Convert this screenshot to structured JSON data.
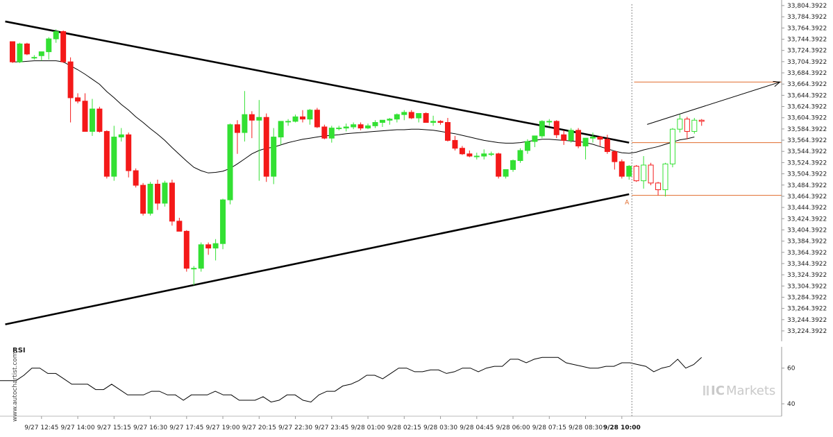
{
  "chart_data": {
    "type": "candlestick",
    "price_axis": {
      "min": 33224.3922,
      "max": 33804.3922,
      "step": 20,
      "tick_labels": [
        "33,804.3922",
        "33,784.3922",
        "33,764.3922",
        "33,744.3922",
        "33,724.3922",
        "33,704.3922",
        "33,684.3922",
        "33,664.3922",
        "33,644.3922",
        "33,624.3922",
        "33,604.3922",
        "33,584.3922",
        "33,564.3922",
        "33,544.3922",
        "33,524.3922",
        "33,504.3922",
        "33,484.3922",
        "33,464.3922",
        "33,444.3922",
        "33,424.3922",
        "33,404.3922",
        "33,384.3922",
        "33,364.3922",
        "33,344.3922",
        "33,324.3922",
        "33,304.3922",
        "33,284.3922",
        "33,264.3922",
        "33,244.3922",
        "33,224.3922"
      ]
    },
    "time_axis": {
      "labels": [
        "9/27 12:45",
        "9/27 14:00",
        "9/27 15:15",
        "9/27 16:30",
        "9/27 17:45",
        "9/27 19:00",
        "9/27 20:15",
        "9/27 22:30",
        "9/27 23:45",
        "9/28 01:00",
        "9/28 02:15",
        "9/28 03:30",
        "9/28 04:45",
        "9/28 06:00",
        "9/28 07:15",
        "9/28 08:30",
        "9/28 10:00"
      ],
      "label_index": [
        4,
        9,
        14,
        19,
        24,
        29,
        34,
        39,
        44,
        49,
        54,
        59,
        64,
        69,
        74,
        79,
        84
      ],
      "highlight": "9/28 10:00",
      "current_index": 85
    },
    "candles": [
      [
        33740,
        33738,
        33702,
        33704
      ],
      [
        33704,
        33738,
        33702,
        33736
      ],
      [
        33736,
        33738,
        33716,
        33718
      ],
      [
        33712,
        33716,
        33708,
        33712
      ],
      [
        33715,
        33722,
        33706,
        33722
      ],
      [
        33722,
        33748,
        33708,
        33745
      ],
      [
        33745,
        33762,
        33738,
        33758
      ],
      [
        33758,
        33760,
        33702,
        33704
      ],
      [
        33704,
        33712,
        33596,
        33640
      ],
      [
        33640,
        33648,
        33630,
        33634
      ],
      [
        33634,
        33648,
        33580,
        33580
      ],
      [
        33580,
        33638,
        33572,
        33620
      ],
      [
        33620,
        33624,
        33578,
        33580
      ],
      [
        33580,
        33582,
        33496,
        33500
      ],
      [
        33500,
        33590,
        33492,
        33570
      ],
      [
        33570,
        33586,
        33562,
        33574
      ],
      [
        33574,
        33578,
        33498,
        33510
      ],
      [
        33510,
        33514,
        33480,
        33484
      ],
      [
        33484,
        33488,
        33430,
        33434
      ],
      [
        33434,
        33490,
        33430,
        33486
      ],
      [
        33486,
        33494,
        33440,
        33452
      ],
      [
        33452,
        33492,
        33446,
        33488
      ],
      [
        33488,
        33494,
        33412,
        33420
      ],
      [
        33420,
        33426,
        33402,
        33402
      ],
      [
        33402,
        33404,
        33330,
        33336
      ],
      [
        33336,
        33340,
        33306,
        33336
      ],
      [
        33336,
        33382,
        33330,
        33378
      ],
      [
        33378,
        33382,
        33360,
        33372
      ],
      [
        33372,
        33388,
        33350,
        33380
      ],
      [
        33380,
        33460,
        33370,
        33458
      ],
      [
        33458,
        33594,
        33450,
        33592
      ],
      [
        33592,
        33600,
        33540,
        33578
      ],
      [
        33578,
        33652,
        33562,
        33610
      ],
      [
        33610,
        33616,
        33568,
        33600
      ],
      [
        33600,
        33636,
        33492,
        33605
      ],
      [
        33605,
        33612,
        33490,
        33500
      ],
      [
        33500,
        33586,
        33486,
        33570
      ],
      [
        33570,
        33598,
        33556,
        33598
      ],
      [
        33598,
        33602,
        33590,
        33598
      ],
      [
        33598,
        33610,
        33596,
        33606
      ],
      [
        33606,
        33618,
        33596,
        33602
      ],
      [
        33602,
        33620,
        33592,
        33618
      ],
      [
        33618,
        33622,
        33586,
        33588
      ],
      [
        33588,
        33592,
        33566,
        33568
      ],
      [
        33568,
        33590,
        33560,
        33586
      ],
      [
        33586,
        33590,
        33582,
        33586
      ],
      [
        33586,
        33594,
        33580,
        33588
      ],
      [
        33588,
        33596,
        33584,
        33592
      ],
      [
        33592,
        33596,
        33582,
        33586
      ],
      [
        33586,
        33594,
        33584,
        33590
      ],
      [
        33590,
        33600,
        33586,
        33596
      ],
      [
        33596,
        33600,
        33588,
        33600
      ],
      [
        33600,
        33604,
        33592,
        33602
      ],
      [
        33602,
        33612,
        33596,
        33610
      ],
      [
        33610,
        33618,
        33600,
        33614
      ],
      [
        33614,
        33618,
        33602,
        33604
      ],
      [
        33604,
        33612,
        33596,
        33612
      ],
      [
        33612,
        33614,
        33596,
        33596
      ],
      [
        33596,
        33608,
        33590,
        33598
      ],
      [
        33598,
        33600,
        33592,
        33596
      ],
      [
        33596,
        33604,
        33562,
        33564
      ],
      [
        33564,
        33572,
        33546,
        33550
      ],
      [
        33550,
        33554,
        33538,
        33540
      ],
      [
        33540,
        33546,
        33534,
        33536
      ],
      [
        33536,
        33542,
        33530,
        33536
      ],
      [
        33536,
        33548,
        33530,
        33540
      ],
      [
        33540,
        33544,
        33536,
        33540
      ],
      [
        33540,
        33542,
        33496,
        33500
      ],
      [
        33500,
        33512,
        33496,
        33512
      ],
      [
        33512,
        33530,
        33508,
        33528
      ],
      [
        33528,
        33550,
        33524,
        33546
      ],
      [
        33546,
        33566,
        33540,
        33562
      ],
      [
        33562,
        33572,
        33552,
        33572
      ],
      [
        33572,
        33600,
        33568,
        33598
      ],
      [
        33598,
        33602,
        33590,
        33598
      ],
      [
        33598,
        33600,
        33568,
        33574
      ],
      [
        33574,
        33582,
        33556,
        33564
      ],
      [
        33564,
        33586,
        33560,
        33582
      ],
      [
        33582,
        33586,
        33550,
        33554
      ],
      [
        33554,
        33568,
        33530,
        33568
      ],
      [
        33568,
        33578,
        33560,
        33570
      ],
      [
        33570,
        33572,
        33554,
        33566
      ],
      [
        33566,
        33574,
        33540,
        33544
      ],
      [
        33544,
        33546,
        33512,
        33526
      ],
      [
        33526,
        33530,
        33496,
        33500
      ],
      [
        33500,
        33520,
        33494,
        33518
      ],
      [
        33518,
        33520,
        33490,
        33492
      ],
      [
        33492,
        33536,
        33478,
        33520
      ],
      [
        33520,
        33524,
        33484,
        33488
      ],
      [
        33488,
        33490,
        33466,
        33476
      ],
      [
        33476,
        33524,
        33464,
        33522
      ],
      [
        33522,
        33586,
        33516,
        33584
      ],
      [
        33584,
        33610,
        33578,
        33602
      ],
      [
        33602,
        33606,
        33566,
        33580
      ],
      [
        33580,
        33604,
        33576,
        33600
      ],
      [
        33600,
        33602,
        33590,
        33598
      ]
    ],
    "moving_average": [
      33704,
      33704,
      33705,
      33706,
      33706,
      33706,
      33706,
      33704,
      33697,
      33690,
      33682,
      33673,
      33664,
      33651,
      33640,
      33628,
      33618,
      33606,
      33596,
      33585,
      33575,
      33564,
      33551,
      33539,
      33527,
      33516,
      33510,
      33506,
      33507,
      33509,
      33514,
      33522,
      33531,
      33540,
      33546,
      33550,
      33552,
      33556,
      33560,
      33563,
      33566,
      33568,
      33570,
      33572,
      33573,
      33574,
      33576,
      33577,
      33578,
      33579,
      33580,
      33581,
      33582,
      33583,
      33583,
      33584,
      33584,
      33583,
      33582,
      33580,
      33578,
      33576,
      33573,
      33570,
      33567,
      33564,
      33562,
      33560,
      33559,
      33559,
      33560,
      33562,
      33564,
      33566,
      33566,
      33565,
      33564,
      33563,
      33562,
      33560,
      33557,
      33553,
      33549,
      33545,
      33542,
      33541,
      33543,
      33547,
      33550,
      33553,
      33557,
      33561,
      33565,
      33567,
      33570
    ],
    "trendlines": [
      {
        "from": [
          -1,
          33776
        ],
        "to": [
          85,
          33560
        ]
      },
      {
        "from": [
          -1,
          33236
        ],
        "to": [
          85,
          33468
        ]
      }
    ],
    "pattern_label": "A",
    "horizontal_levels": [
      33668,
      33560,
      33466
    ],
    "projection_arrow": {
      "from": [
        85,
        33590
      ],
      "to": [
        101,
        33668
      ]
    },
    "rsi": {
      "title": "RSI",
      "levels": [
        60,
        40
      ],
      "range": [
        35,
        70
      ],
      "values": [
        53,
        53,
        53,
        56,
        60,
        60,
        57,
        57,
        54,
        51,
        51,
        51,
        48,
        48,
        51,
        48,
        45,
        45,
        45,
        47,
        47,
        45,
        45,
        42,
        45,
        45,
        45,
        47,
        45,
        45,
        42,
        42,
        42,
        44,
        41,
        42,
        45,
        45,
        42,
        41,
        45,
        47,
        47,
        50,
        51,
        53,
        56,
        56,
        54,
        57,
        60,
        60,
        58,
        58,
        59,
        59,
        57,
        58,
        60,
        60,
        58,
        60,
        61,
        61,
        65,
        65,
        63,
        65,
        66,
        66,
        66,
        63,
        62,
        61,
        60,
        60,
        61,
        61,
        63,
        63,
        62,
        61,
        58,
        60,
        61,
        65,
        60,
        62,
        66
      ]
    },
    "colors": {
      "up": "#33e033",
      "down": "#f41919",
      "line": "#000000",
      "level": "#e06a2a",
      "grid": "#dddddd"
    }
  },
  "watermark": {
    "side_text": "www.autochartist.com",
    "brand_ic": "IC",
    "brand_name": "Markets"
  }
}
